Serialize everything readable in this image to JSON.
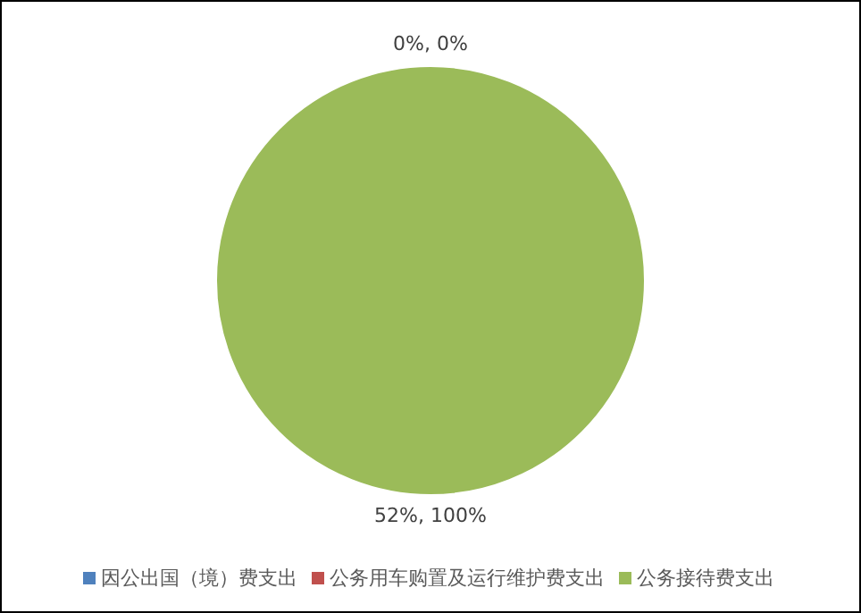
{
  "chart_data": {
    "type": "pie",
    "categories": [
      "因公出国（境）费支出",
      "公务用车购置及运行维护费支出",
      "公务接待费支出"
    ],
    "values": [
      0,
      0,
      100
    ],
    "colors": [
      "#4f81bd",
      "#c0504d",
      "#9bbb59"
    ],
    "value_labels": [
      null,
      "0%, 0%",
      "52%, 100%"
    ],
    "legend": "bottom"
  }
}
